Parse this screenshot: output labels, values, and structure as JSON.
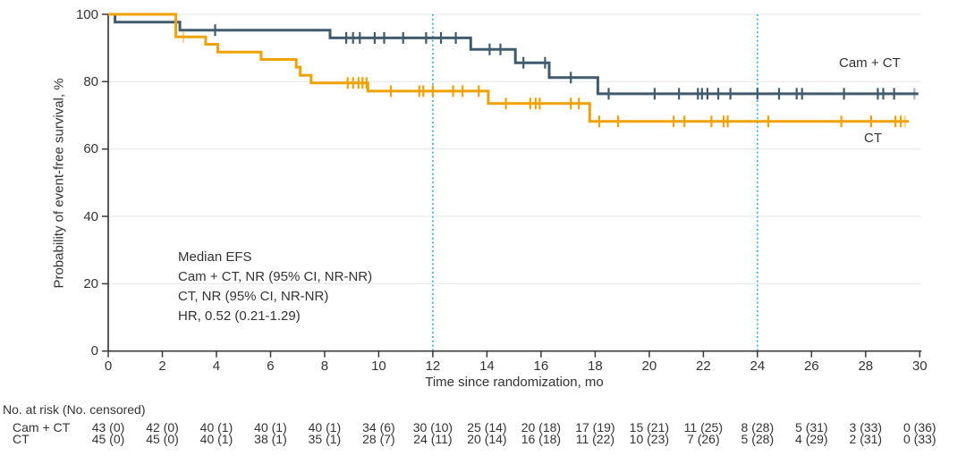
{
  "chart_data": {
    "type": "line",
    "subtype": "kaplan-meier-step",
    "title": "",
    "xlabel": "Time since randomization, mo",
    "ylabel": "Probability of event-free survival, %",
    "xlim": [
      0,
      30
    ],
    "ylim": [
      0,
      100
    ],
    "xticks": [
      0,
      2,
      4,
      6,
      8,
      10,
      12,
      14,
      16,
      18,
      20,
      22,
      24,
      26,
      28,
      30
    ],
    "yticks": [
      0,
      20,
      40,
      60,
      80,
      100
    ],
    "grid": "horizontal-light",
    "gridline_color": "#EBEBEB",
    "axis_color": "#3A3A3A",
    "reference_lines_x": [
      12,
      24
    ],
    "reference_line_color": "#41B6E6",
    "legend_position": "curve-end-labels",
    "series": [
      {
        "name": "Cam + CT",
        "slug": "cam-ct",
        "color": "#405B6E",
        "steps": [
          [
            0,
            100
          ],
          [
            0.25,
            100
          ],
          [
            0.25,
            97.7
          ],
          [
            2.65,
            97.7
          ],
          [
            2.65,
            95.3
          ],
          [
            8.2,
            95.3
          ],
          [
            8.2,
            93
          ],
          [
            13.4,
            93
          ],
          [
            13.4,
            89.6
          ],
          [
            15.05,
            89.6
          ],
          [
            15.05,
            85.6
          ],
          [
            16.3,
            85.6
          ],
          [
            16.3,
            81.2
          ],
          [
            18.1,
            81.2
          ],
          [
            18.1,
            76.4
          ],
          [
            29.95,
            76.4
          ]
        ],
        "censors": [
          [
            3.95,
            95.3
          ],
          [
            8.8,
            93
          ],
          [
            9.05,
            93
          ],
          [
            9.3,
            93
          ],
          [
            9.85,
            93
          ],
          [
            10.2,
            93
          ],
          [
            10.9,
            93
          ],
          [
            11.75,
            93
          ],
          [
            12.3,
            93
          ],
          [
            12.85,
            93
          ],
          [
            14.1,
            89.6
          ],
          [
            14.5,
            89.6
          ],
          [
            15.35,
            85.6
          ],
          [
            16.15,
            85.6
          ],
          [
            17.1,
            81.2
          ],
          [
            18.5,
            76.4
          ],
          [
            20.2,
            76.4
          ],
          [
            21.1,
            76.4
          ],
          [
            21.8,
            76.4
          ],
          [
            21.95,
            76.4
          ],
          [
            22.15,
            76.4
          ],
          [
            22.55,
            76.4
          ],
          [
            23,
            76.4
          ],
          [
            24,
            76.4
          ],
          [
            24.8,
            76.4
          ],
          [
            25.45,
            76.4
          ],
          [
            25.65,
            76.4
          ],
          [
            27.2,
            76.4
          ],
          [
            28.45,
            76.4
          ],
          [
            28.65,
            76.4
          ],
          [
            29.05,
            76.4
          ]
        ],
        "light_censors": [
          [
            29.8,
            76.4
          ]
        ]
      },
      {
        "name": "CT",
        "slug": "ct",
        "color": "#F0A202",
        "steps": [
          [
            0,
            100
          ],
          [
            2.5,
            100
          ],
          [
            2.5,
            93.3
          ],
          [
            3.6,
            93.3
          ],
          [
            3.6,
            91.1
          ],
          [
            4.05,
            91.1
          ],
          [
            4.05,
            88.8
          ],
          [
            5.65,
            88.8
          ],
          [
            5.65,
            86.6
          ],
          [
            6.95,
            86.6
          ],
          [
            6.95,
            84.3
          ],
          [
            7.1,
            84.3
          ],
          [
            7.1,
            81.9
          ],
          [
            7.5,
            81.9
          ],
          [
            7.5,
            79.6
          ],
          [
            9.6,
            79.6
          ],
          [
            9.6,
            77.2
          ],
          [
            14.05,
            77.2
          ],
          [
            14.05,
            73.5
          ],
          [
            17.8,
            73.5
          ],
          [
            17.8,
            68.2
          ],
          [
            29.6,
            68.2
          ]
        ],
        "censors": [
          [
            8.85,
            79.6
          ],
          [
            9.05,
            79.6
          ],
          [
            9.25,
            79.6
          ],
          [
            9.4,
            79.6
          ],
          [
            9.55,
            79.6
          ],
          [
            10.45,
            77.2
          ],
          [
            11.5,
            77.2
          ],
          [
            11.65,
            77.2
          ],
          [
            12,
            77.2
          ],
          [
            12.75,
            77.2
          ],
          [
            13.1,
            77.2
          ],
          [
            13.7,
            77.2
          ],
          [
            14.7,
            73.5
          ],
          [
            15.6,
            73.5
          ],
          [
            15.8,
            73.5
          ],
          [
            15.95,
            73.5
          ],
          [
            17.1,
            73.5
          ],
          [
            17.4,
            73.5
          ],
          [
            18.15,
            68.2
          ],
          [
            18.85,
            68.2
          ],
          [
            20.9,
            68.2
          ],
          [
            21.3,
            68.2
          ],
          [
            22.3,
            68.2
          ],
          [
            22.75,
            68.2
          ],
          [
            22.9,
            68.2
          ],
          [
            24.4,
            68.2
          ],
          [
            27.1,
            68.2
          ],
          [
            28.2,
            68.2
          ],
          [
            29.1,
            68.2
          ],
          [
            29.3,
            68.2
          ]
        ],
        "light_censors": [
          [
            2.77,
            93.3
          ],
          [
            29.45,
            68.2
          ]
        ]
      }
    ],
    "annotation": {
      "lines": [
        "Median EFS",
        "Cam + CT, NR (95% CI, NR-NR)",
        "CT, NR (95% CI, NR-NR)",
        "HR, 0.52 (0.21-1.29)"
      ]
    },
    "risk_table": {
      "header": "No. at risk (No. censored)",
      "times": [
        0,
        2,
        4,
        6,
        8,
        10,
        12,
        14,
        16,
        18,
        20,
        22,
        24,
        26,
        28,
        30
      ],
      "rows": [
        {
          "label": "Cam + CT",
          "values": [
            "43 (0)",
            "42 (0)",
            "40 (1)",
            "40 (1)",
            "40 (1)",
            "34 (6)",
            "30 (10)",
            "25 (14)",
            "20 (18)",
            "17 (19)",
            "15 (21)",
            "11 (25)",
            "8 (28)",
            "5 (31)",
            "3 (33)",
            "0 (36)"
          ]
        },
        {
          "label": "CT",
          "values": [
            "45 (0)",
            "45 (0)",
            "40 (1)",
            "38 (1)",
            "35 (1)",
            "28 (7)",
            "24 (11)",
            "20 (14)",
            "16 (18)",
            "11 (22)",
            "10 (23)",
            "7 (26)",
            "5 (28)",
            "4 (29)",
            "2 (31)",
            "0 (33)"
          ]
        }
      ]
    }
  }
}
